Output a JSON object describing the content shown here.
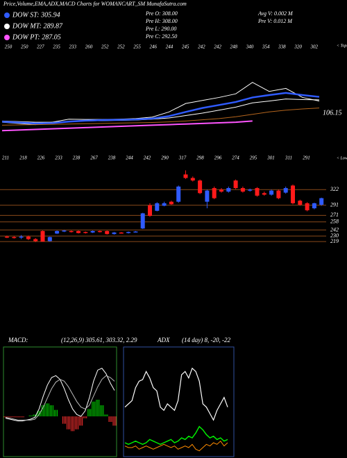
{
  "title": "Price,Volume,EMA,ADX,MACD Charts for WOMANCART_SM MunafaSutra.com",
  "legend": [
    {
      "name": "DOW ST: 305.94",
      "color": "#2f5bff"
    },
    {
      "name": "DOW MT: 289.87",
      "color": "#ffffff"
    },
    {
      "name": "DOW PT: 287.05",
      "color": "#ff55ff"
    }
  ],
  "info": [
    "Pre  O: 308.00",
    "Pre  H: 308.00",
    "Pre  L: 290.00",
    "Pre  C: 292.50",
    "Avg V: 0.002  M",
    "Pre  V: 0.012  M"
  ],
  "chart_data": [
    {
      "type": "line",
      "tops": [
        "250",
        "250",
        "227",
        "235",
        "233",
        "260",
        "252",
        "252",
        "255",
        "246",
        "244",
        "245",
        "242",
        "242",
        "248",
        "340",
        "354",
        "338",
        "320",
        "302"
      ],
      "tops_label": "< Tops",
      "lows": [
        "211",
        "218",
        "226",
        "233",
        "238",
        "267",
        "238",
        "244",
        "242",
        "290",
        "317",
        "298",
        "296",
        "274",
        "295",
        "301",
        "311",
        "291"
      ],
      "lows_label": "< Lows",
      "ylim": [
        150,
        380
      ],
      "annotation": "106.15",
      "series": [
        {
          "name": "price",
          "color": "#ffffff",
          "values": [
            228,
            224,
            220,
            228,
            238,
            237,
            237,
            238,
            240,
            245,
            262,
            290,
            300,
            310,
            322,
            360,
            330,
            340,
            310,
            298
          ]
        },
        {
          "color": "#ffffff",
          "values": [
            232,
            230,
            228,
            228,
            230,
            232,
            233,
            234,
            235,
            238,
            242,
            250,
            258,
            268,
            278,
            292,
            298,
            305,
            303,
            302
          ]
        },
        {
          "color": "#2f5bff",
          "values": [
            230,
            227,
            224,
            225,
            230,
            233,
            235,
            236,
            237,
            240,
            248,
            262,
            275,
            285,
            295,
            310,
            318,
            325,
            318,
            312
          ]
        },
        {
          "color": "#b5651d",
          "values": [
            218,
            219,
            220,
            221,
            222,
            223,
            224,
            225,
            226,
            227,
            229,
            232,
            236,
            240,
            246,
            254,
            262,
            268,
            272,
            275
          ]
        },
        {
          "color": "#ff55ff",
          "values": [
            200,
            202,
            204,
            206,
            208,
            210,
            212,
            214,
            216,
            218,
            220,
            222,
            224,
            226,
            228,
            232,
            null,
            null,
            null,
            null
          ]
        }
      ]
    },
    {
      "type": "candlestick",
      "ylim": [
        200,
        380
      ],
      "up_color": "#2f5bff",
      "down_color": "#ff1a1a",
      "levels": [
        322,
        291,
        271,
        258,
        242,
        230,
        219
      ],
      "open": [
        229,
        228,
        227,
        229,
        224,
        240,
        220,
        235,
        239,
        240,
        240,
        238,
        237,
        240,
        240,
        234,
        237,
        236,
        238,
        245,
        291,
        280,
        290,
        298,
        298,
        352,
        345,
        340,
        298,
        325,
        322,
        318,
        340,
        325,
        320,
        325,
        315,
        312,
        320,
        316,
        330,
        300,
        295,
        285,
        292
      ],
      "high": [
        231,
        230,
        232,
        231,
        226,
        241,
        229,
        241,
        242,
        241,
        241,
        239,
        241,
        241,
        241,
        238,
        238,
        239,
        240,
        276,
        295,
        297,
        298,
        300,
        330,
        360,
        348,
        342,
        322,
        328,
        325,
        328,
        342,
        328,
        324,
        327,
        318,
        322,
        322,
        328,
        332,
        302,
        297,
        296,
        306
      ],
      "low": [
        226,
        225,
        224,
        222,
        218,
        219,
        219,
        234,
        238,
        237,
        235,
        235,
        236,
        237,
        233,
        233,
        235,
        235,
        237,
        244,
        268,
        279,
        289,
        292,
        296,
        343,
        338,
        313,
        285,
        303,
        316,
        316,
        323,
        316,
        318,
        308,
        310,
        310,
        303,
        314,
        293,
        290,
        279,
        283,
        290
      ],
      "close": [
        228,
        227,
        229,
        224,
        220,
        219,
        228,
        240,
        241,
        238,
        236,
        236,
        240,
        238,
        234,
        237,
        236,
        238,
        239,
        275,
        270,
        295,
        295,
        293,
        328,
        345,
        340,
        315,
        320,
        305,
        318,
        325,
        325,
        318,
        322,
        310,
        312,
        320,
        305,
        325,
        295,
        292,
        281,
        295,
        305
      ]
    },
    {
      "type": "macd",
      "label": "MACD:",
      "params": "(12,26,9) 305.61, 303.32, 2.29",
      "ylim": [
        -30,
        60
      ],
      "macd": [
        -2,
        -3,
        -4,
        -5,
        -5,
        -4,
        -3,
        -1,
        8,
        22,
        34,
        42,
        44,
        40,
        30,
        18,
        8,
        2,
        0,
        6,
        20,
        38,
        50,
        52,
        46,
        36,
        28
      ],
      "signal": [
        -1,
        -2,
        -3,
        -4,
        -4,
        -4,
        -4,
        -3,
        2,
        10,
        20,
        30,
        37,
        40,
        38,
        32,
        24,
        16,
        10,
        8,
        12,
        22,
        32,
        40,
        44,
        42,
        38
      ],
      "hist": [
        -1,
        -1,
        -1,
        -1,
        -1,
        0,
        1,
        2,
        6,
        12,
        14,
        12,
        7,
        0,
        -8,
        -14,
        -16,
        -14,
        -10,
        -2,
        8,
        16,
        18,
        12,
        2,
        -6,
        -10
      ]
    },
    {
      "type": "adx",
      "label": "ADX",
      "params": "(14 day) 8, -20, -22",
      "ylim": [
        0,
        60
      ],
      "adx": [
        28,
        30,
        32,
        40,
        44,
        45,
        50,
        46,
        40,
        38,
        28,
        26,
        30,
        28,
        26,
        32,
        48,
        50,
        46,
        52,
        50,
        44,
        30,
        28,
        24,
        20,
        26,
        30,
        34,
        28
      ],
      "plus_di": [
        6,
        5,
        6,
        7,
        6,
        5,
        6,
        8,
        7,
        6,
        5,
        6,
        7,
        8,
        6,
        7,
        9,
        8,
        10,
        9,
        12,
        16,
        14,
        11,
        9,
        10,
        8,
        9,
        7,
        8
      ],
      "minus_di": [
        4,
        3,
        3,
        4,
        2,
        3,
        4,
        3,
        2,
        3,
        4,
        5,
        4,
        3,
        4,
        2,
        3,
        4,
        3,
        5,
        2,
        1,
        3,
        5,
        4,
        6,
        5,
        7,
        4,
        6
      ],
      "adx_color": "#ffffff",
      "plus_color": "#00ee00",
      "minus_color": "#ff8c00"
    }
  ]
}
